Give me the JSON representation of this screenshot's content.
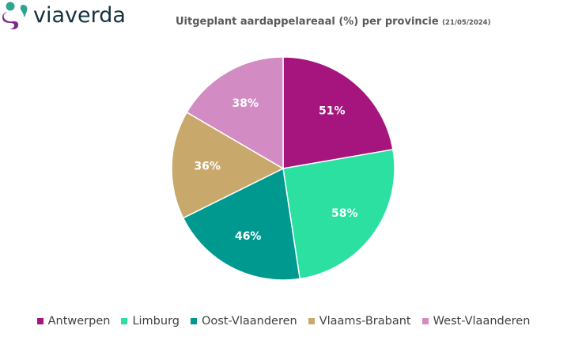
{
  "logo": {
    "text": "viaverda",
    "colors": [
      "#2ea591",
      "#7a2b86",
      "#16303f"
    ]
  },
  "title": {
    "main": "Uitgeplant aardappelareaal (%) per provincie",
    "date": "(21/05/2024)"
  },
  "chart_data": {
    "type": "pie",
    "title": "Uitgeplant aardappelareaal (%) per provincie (21/05/2024)",
    "categories": [
      "Antwerpen",
      "Limburg",
      "Oost-Vlaanderen",
      "Vlaams-Brabant",
      "West-Vlaanderen"
    ],
    "values": [
      51,
      58,
      46,
      36,
      38
    ],
    "labels": [
      "51%",
      "58%",
      "46%",
      "36%",
      "38%"
    ],
    "colors": [
      "#a6157d",
      "#2be0a1",
      "#009990",
      "#c9a96b",
      "#d38bc4"
    ],
    "start": "12 o'clock",
    "direction": "clockwise",
    "legend_position": "bottom"
  }
}
